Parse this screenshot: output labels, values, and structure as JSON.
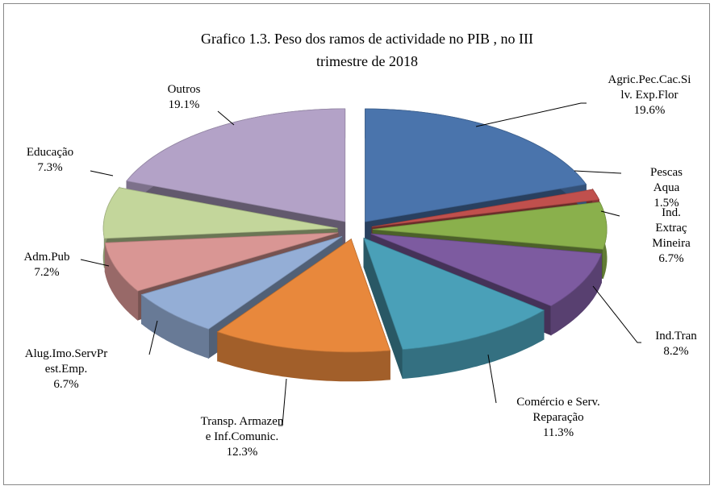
{
  "chart_data": {
    "type": "pie3d",
    "title": "Grafico  1.3. Peso dos ramos de actividade no PIB , no III\ntrimestre de 2018",
    "categories": [
      "Agric.Pec.Cac.Si\nlv. Exp.Flor",
      "Pescas Aqua",
      "Ind. Extraç\nMineira",
      "Ind.Tran",
      "Comércio e Serv.\nReparação",
      "Transp. Armazen\ne Inf.Comunic.",
      "Alug.Imo.ServPr\nest.Emp.",
      "Adm.Pub",
      "Educação",
      "Outros"
    ],
    "values": [
      19.6,
      1.5,
      6.7,
      8.2,
      11.3,
      12.3,
      6.7,
      7.2,
      7.3,
      19.1
    ],
    "value_labels": [
      "19.6%",
      "1.5%",
      "6.7%",
      "8.2%",
      "11.3%",
      "12.3%",
      "6.7%",
      "7.2%",
      "7.3%",
      "19.1%"
    ],
    "colors": [
      "#4a74ac",
      "#c0504d",
      "#8ab04c",
      "#7d5ba0",
      "#4aa0b8",
      "#e8883c",
      "#94aed6",
      "#d99694",
      "#c3d69b",
      "#b3a2c7"
    ]
  }
}
